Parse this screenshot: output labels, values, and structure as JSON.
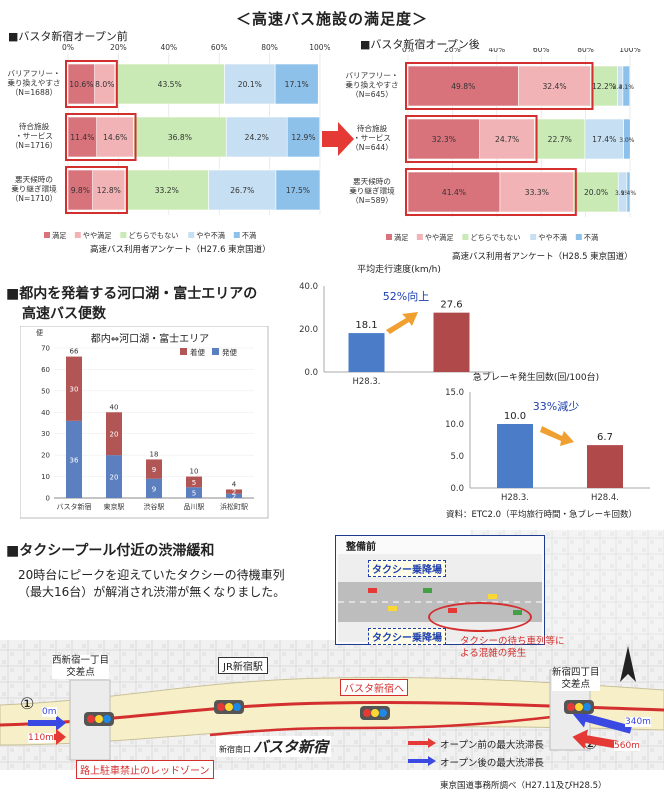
{
  "main_title": "＜高速バス施設の満足度＞",
  "satisfaction": {
    "ticks": [
      "0%",
      "20%",
      "40%",
      "60%",
      "80%",
      "100%"
    ],
    "legend": [
      "満足",
      "やや満足",
      "どちらでもない",
      "やや不満",
      "不満"
    ],
    "legend_after": [
      "満足",
      "やや満足",
      "どちらでもない",
      "やや不満",
      "不満"
    ],
    "colors": [
      "#d9737b",
      "#f2b3b6",
      "#c9eab5",
      "#c6dff2",
      "#8ec1ea"
    ],
    "before": {
      "heading": "■バスタ新宿オープン前",
      "source": "高速バス利用者アンケート（H27.6 東京国道）",
      "rows": [
        {
          "label": [
            "バリアフリー・",
            "乗り換えやすさ",
            "（N=1688）"
          ],
          "values": [
            10.6,
            8.0,
            43.5,
            20.1,
            17.1
          ],
          "labels": [
            "10.6%",
            "8.0%",
            "43.5%",
            "20.1%",
            "17.1%"
          ]
        },
        {
          "label": [
            "待合施設",
            "・サービス",
            "（N=1716）"
          ],
          "values": [
            11.4,
            14.6,
            36.8,
            24.2,
            12.9
          ],
          "labels": [
            "11.4%",
            "14.6%",
            "36.8%",
            "24.2%",
            "12.9%"
          ]
        },
        {
          "label": [
            "悪天候時の",
            "乗り継ぎ環境",
            "（N=1710）"
          ],
          "values": [
            9.8,
            12.8,
            33.2,
            26.7,
            17.5
          ],
          "labels": [
            "9.8%",
            "12.8%",
            "33.2%",
            "26.7%",
            "17.5%"
          ]
        }
      ]
    },
    "after": {
      "heading": "■バスタ新宿オープン後",
      "source": "高速バス利用者アンケート（H28.5 東京国道）",
      "rows": [
        {
          "label": [
            "バリアフリー・",
            "乗り換えやすさ",
            "（N=645）"
          ],
          "values": [
            49.8,
            32.4,
            12.2,
            2.4,
            3.1
          ],
          "labels": [
            "49.8%",
            "32.4%",
            "12.2%",
            "2.4%",
            "3.1%"
          ]
        },
        {
          "label": [
            "待合施設",
            "・サービス",
            "（N=644）"
          ],
          "values": [
            32.3,
            24.7,
            22.7,
            17.4,
            3.0
          ],
          "labels": [
            "32.3%",
            "24.7%",
            "22.7%",
            "17.4%",
            "3.0%"
          ]
        },
        {
          "label": [
            "悪天候時の",
            "乗り継ぎ環境",
            "（N=589）"
          ],
          "values": [
            41.4,
            33.3,
            20.0,
            3.9,
            1.4
          ],
          "labels": [
            "41.4%",
            "33.3%",
            "20.0%",
            "3.9%",
            "1.4%"
          ]
        }
      ]
    }
  },
  "bus_section": {
    "heading_line1": "■都内を発着する河口湖・富士エリアの",
    "heading_line2": "高速バス便数",
    "chart_title": "都内⇔河口湖・富士エリア",
    "unit": "便",
    "legend": [
      "着便",
      "発便"
    ],
    "colors": [
      "#b15555",
      "#5b7fbf"
    ],
    "ymax": 70,
    "yticks": [
      "0",
      "10",
      "20",
      "30",
      "40",
      "50",
      "60",
      "70"
    ],
    "categories": [
      "バスタ新宿",
      "東京駅",
      "渋谷駅",
      "品川駅",
      "浜松町駅"
    ],
    "arrive": [
      30,
      20,
      9,
      5,
      2
    ],
    "depart": [
      36,
      20,
      9,
      5,
      2
    ],
    "totals": [
      "66",
      "40",
      "18",
      "10",
      "4"
    ]
  },
  "speed": {
    "title": "平均走行速度(km/h)",
    "yticks": [
      "0.0",
      "20.0",
      "40.0"
    ],
    "ymax": 40,
    "categories": [
      "H28.3.",
      ""
    ],
    "values": [
      18.1,
      27.6
    ],
    "value_labels": [
      "18.1",
      "27.6"
    ],
    "colors": [
      "#4a7cc7",
      "#b04a4a"
    ],
    "annotation": "52%向上"
  },
  "brake": {
    "title": "急ブレーキ発生回数(回/100台)",
    "yticks": [
      "0.0",
      "5.0",
      "10.0",
      "15.0"
    ],
    "ymax": 15,
    "categories": [
      "H28.3.",
      "H28.4."
    ],
    "values": [
      10.0,
      6.7
    ],
    "value_labels": [
      "10.0",
      "6.7"
    ],
    "colors": [
      "#4a7cc7",
      "#b04a4a"
    ],
    "annotation": "33%減少",
    "source": "資料：ETC2.0（平均旅行時間・急ブレーキ回数）"
  },
  "taxi": {
    "heading": "■タクシープール付近の渋滞緩和",
    "desc_line1": "20時台にピークを迎えていたタクシーの待機車列",
    "desc_line2": "（最大16台）が解消され渋滞が無くなりました。",
    "inset_title": "整備前",
    "inset_label_top": "タクシー乗降場",
    "inset_label_bottom": "タクシー乗降場",
    "inset_note_line1": "タクシーの待ち車列等に",
    "inset_note_line2": "よる混雑の発生",
    "label_left_line1": "西新宿一丁目",
    "label_left_line2": "交差点",
    "label_jr": "JR新宿駅",
    "label_right_line1": "新宿四丁目",
    "label_right_line2": "交差点",
    "label_basta": "バスタ新宿へ",
    "label_logo": "バスタ新宿",
    "label_logo_small": "新宿南口",
    "label_lane": "路上駐車禁止のレッドゾーン",
    "left_vals": [
      "0m",
      "110m"
    ],
    "right_vals": [
      "340m",
      "560m"
    ],
    "circle_left": "①",
    "circle_right": "②",
    "legend_before": "オープン前の最大渋滞長",
    "legend_after": "オープン後の最大渋滞長",
    "source": "東京国道事務所調べ（H27.11及びH28.5）"
  }
}
